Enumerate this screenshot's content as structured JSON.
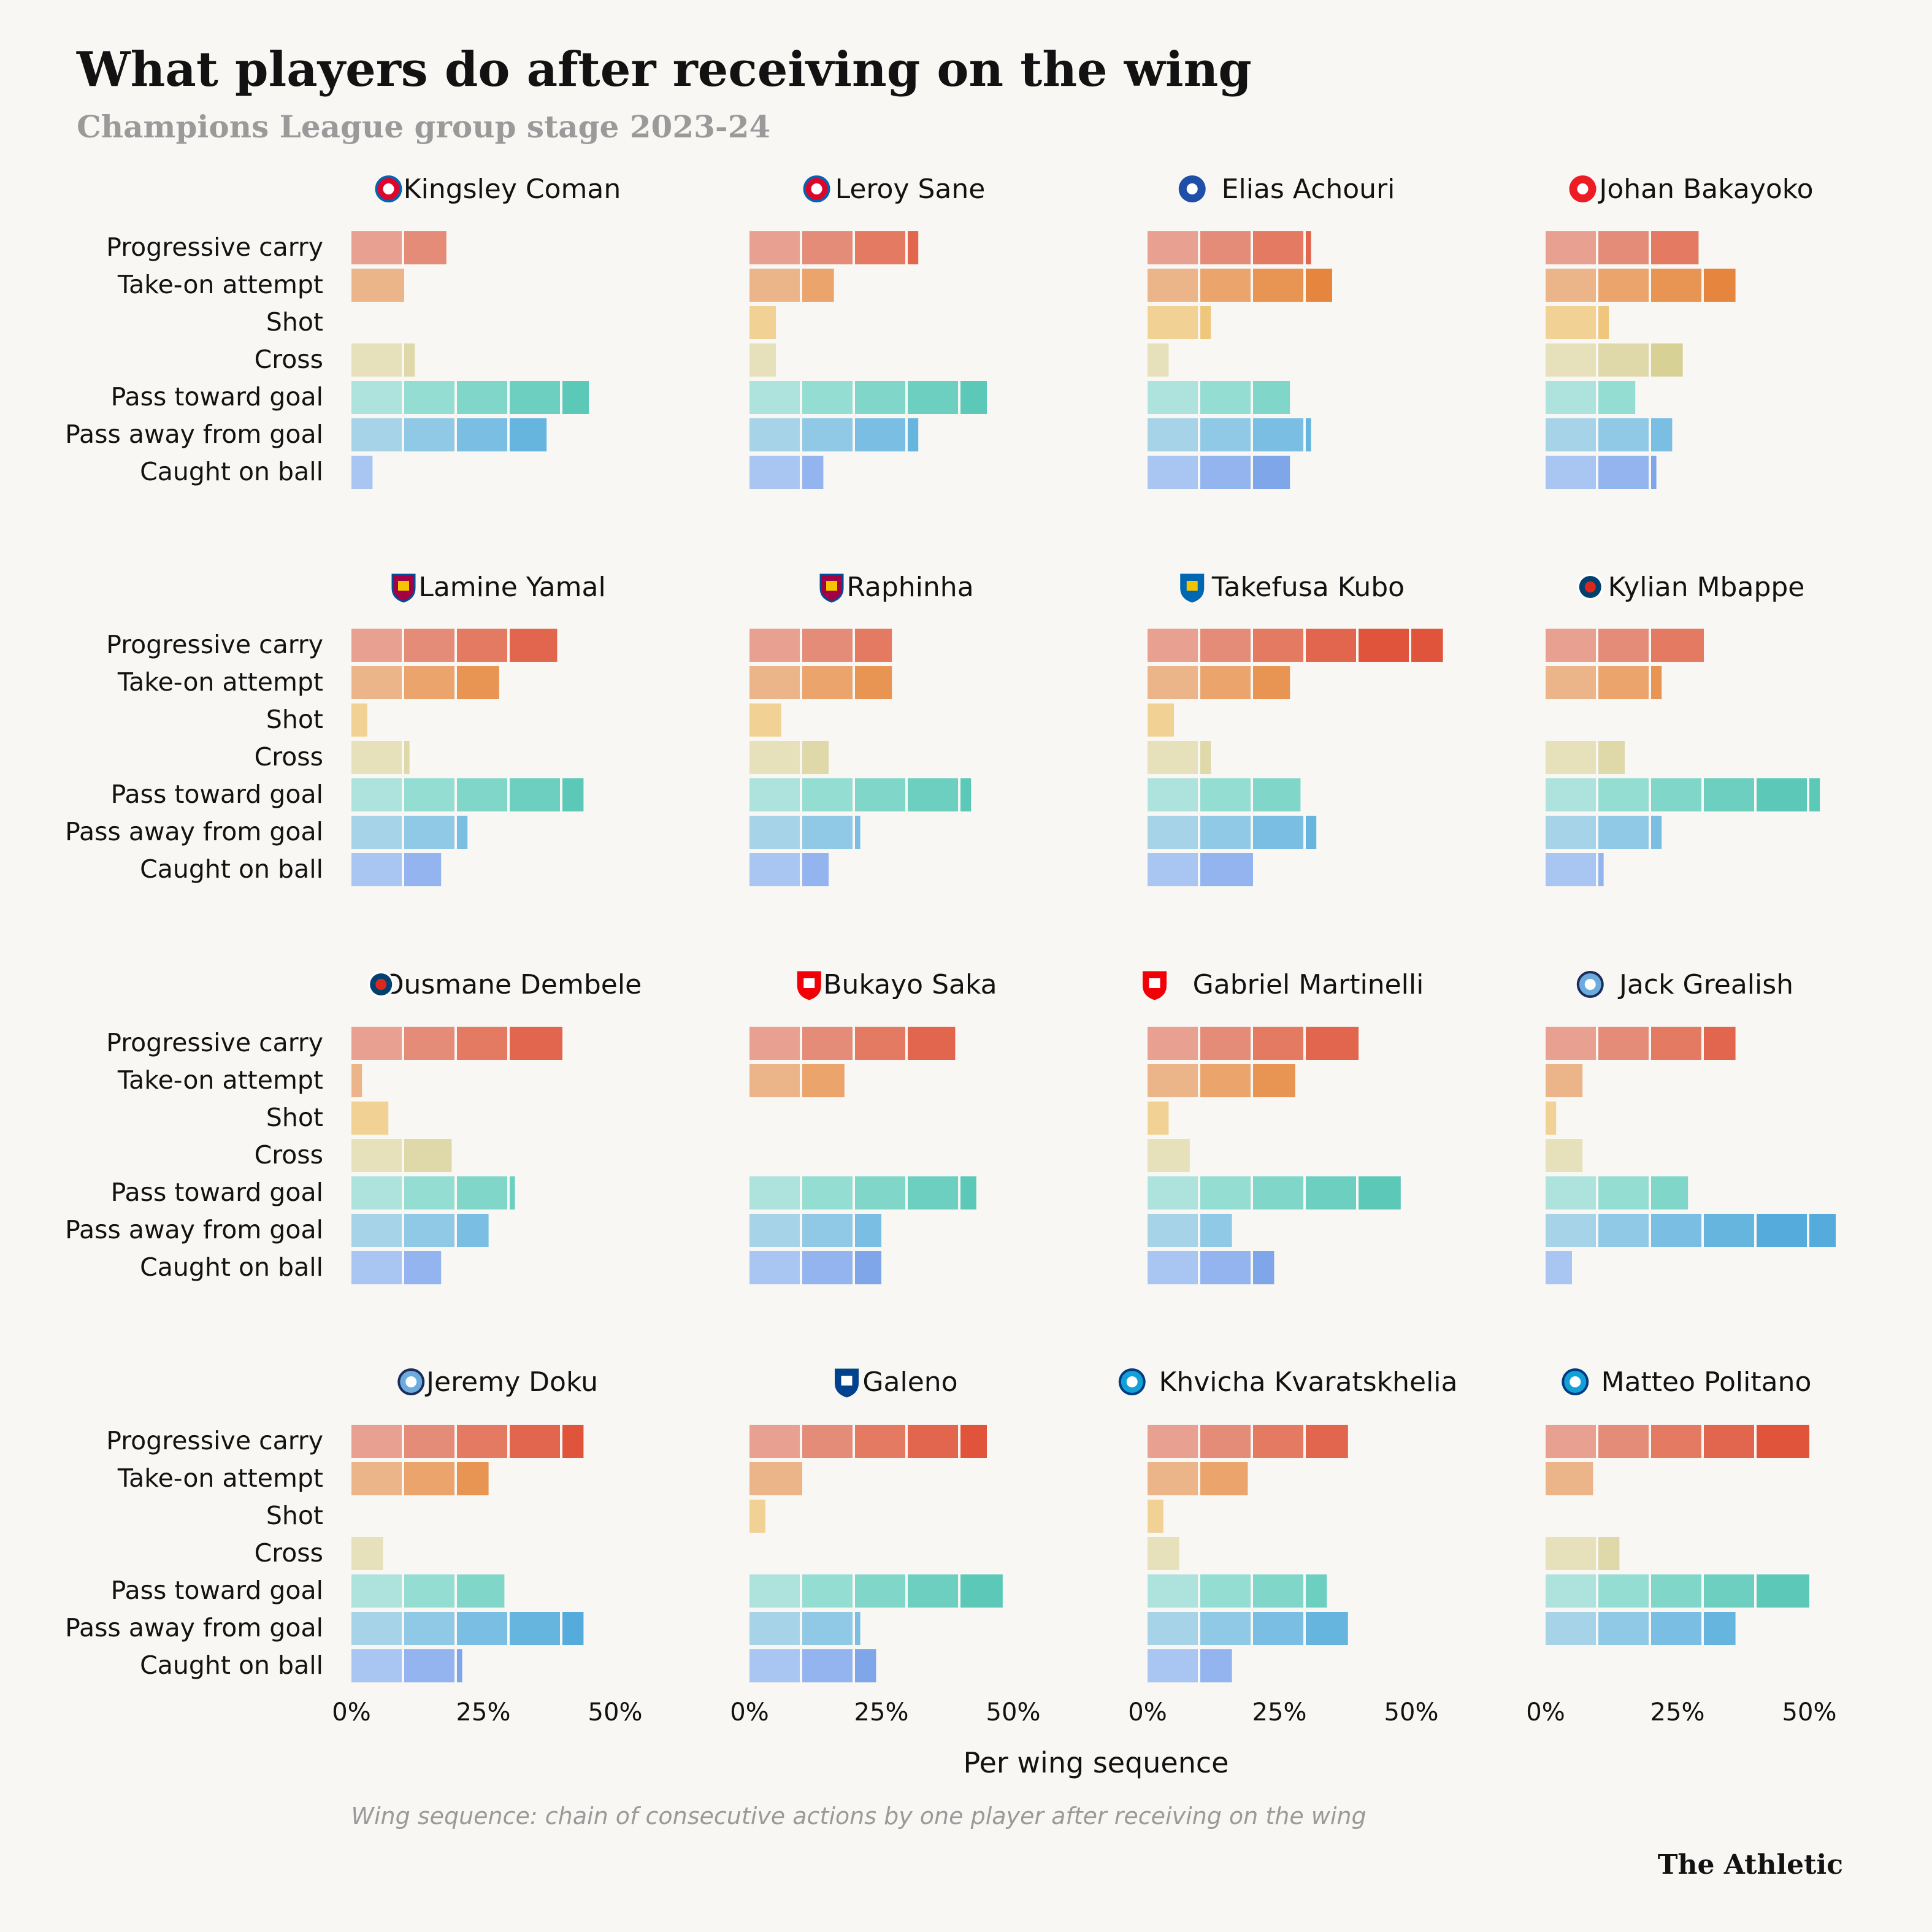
{
  "header": {
    "title": "What players do after receiving on the wing",
    "subtitle": "Champions League group stage 2023-24"
  },
  "footer": {
    "xlabel": "Per wing sequence",
    "note": "Wing sequence: chain of consecutive actions by one player after receiving on the wing",
    "brand": "The Athletic"
  },
  "colors": {
    "background": "#f8f7f4",
    "Progressive carry": [
      "#e8a090",
      "#e58c78",
      "#e47a62",
      "#e2664e",
      "#e0543c"
    ],
    "Take-on attempt": [
      "#ecb589",
      "#eaa46c",
      "#e89452",
      "#e6863e",
      "#e47a2e"
    ],
    "Shot": [
      "#f2d294",
      "#efc77c",
      "#edbd68",
      "#ebb358",
      "#e9a94a"
    ],
    "Cross": [
      "#e6e0bb",
      "#dfd8a8",
      "#d8d196",
      "#d1ca86",
      "#cac378"
    ],
    "Pass toward goal": [
      "#ade3dc",
      "#93ddd2",
      "#7fd6c9",
      "#6dcfc0",
      "#5cc8b7"
    ],
    "Pass away from goal": [
      "#a7d3e8",
      "#90c9e6",
      "#7abfe3",
      "#66b5df",
      "#55acdc"
    ],
    "Caught on ball": [
      "#a9c5f2",
      "#93b4ee",
      "#80a6ea",
      "#6e98e6",
      "#5f8be2"
    ]
  },
  "chart_data": {
    "type": "bar",
    "title": "What players do after receiving on the wing",
    "subtitle": "Champions League group stage 2023-24",
    "xlabel": "Per wing sequence",
    "xlim": [
      0,
      55
    ],
    "ticks": [
      0,
      25,
      50
    ],
    "tick_labels": [
      "0%",
      "25%",
      "50%"
    ],
    "segment_size": 10,
    "categories": [
      "Progressive carry",
      "Take-on attempt",
      "Shot",
      "Cross",
      "Pass toward goal",
      "Pass away from goal",
      "Caught on ball"
    ],
    "panels": [
      {
        "player": "Kingsley Coman",
        "team_icon": "bayern-munich-icon",
        "values": [
          18,
          10,
          0,
          12,
          45,
          37,
          4
        ]
      },
      {
        "player": "Leroy Sane",
        "team_icon": "bayern-munich-icon",
        "values": [
          32,
          16,
          5,
          5,
          45,
          32,
          14
        ]
      },
      {
        "player": "Elias Achouri",
        "team_icon": "copenhagen-icon",
        "values": [
          31,
          35,
          12,
          4,
          27,
          31,
          27
        ]
      },
      {
        "player": "Johan Bakayoko",
        "team_icon": "psv-icon",
        "values": [
          29,
          36,
          12,
          26,
          17,
          24,
          21
        ]
      },
      {
        "player": "Lamine Yamal",
        "team_icon": "barcelona-icon",
        "values": [
          39,
          28,
          3,
          11,
          44,
          22,
          17
        ]
      },
      {
        "player": "Raphinha",
        "team_icon": "barcelona-icon",
        "values": [
          27,
          27,
          6,
          15,
          42,
          21,
          15
        ]
      },
      {
        "player": "Takefusa Kubo",
        "team_icon": "real-sociedad-icon",
        "values": [
          56,
          27,
          5,
          12,
          29,
          32,
          20
        ]
      },
      {
        "player": "Kylian Mbappe",
        "team_icon": "psg-icon",
        "values": [
          30,
          22,
          0,
          15,
          52,
          22,
          11
        ]
      },
      {
        "player": "Ousmane Dembele",
        "team_icon": "psg-icon",
        "values": [
          40,
          2,
          7,
          19,
          31,
          26,
          17
        ]
      },
      {
        "player": "Bukayo Saka",
        "team_icon": "arsenal-icon",
        "values": [
          39,
          18,
          0,
          0,
          43,
          25,
          25
        ]
      },
      {
        "player": "Gabriel Martinelli",
        "team_icon": "arsenal-icon",
        "values": [
          40,
          28,
          4,
          8,
          48,
          16,
          24
        ]
      },
      {
        "player": "Jack Grealish",
        "team_icon": "manchester-city-icon",
        "values": [
          36,
          7,
          2,
          7,
          27,
          55,
          5
        ]
      },
      {
        "player": "Jeremy Doku",
        "team_icon": "manchester-city-icon",
        "values": [
          44,
          26,
          0,
          6,
          29,
          44,
          21
        ]
      },
      {
        "player": "Galeno",
        "team_icon": "porto-icon",
        "values": [
          45,
          10,
          3,
          0,
          48,
          21,
          24
        ]
      },
      {
        "player": "Khvicha Kvaratskhelia",
        "team_icon": "napoli-icon",
        "values": [
          38,
          19,
          3,
          6,
          34,
          38,
          16
        ]
      },
      {
        "player": "Matteo Politano",
        "team_icon": "napoli-icon",
        "values": [
          50,
          9,
          0,
          14,
          50,
          36,
          0
        ]
      }
    ]
  }
}
